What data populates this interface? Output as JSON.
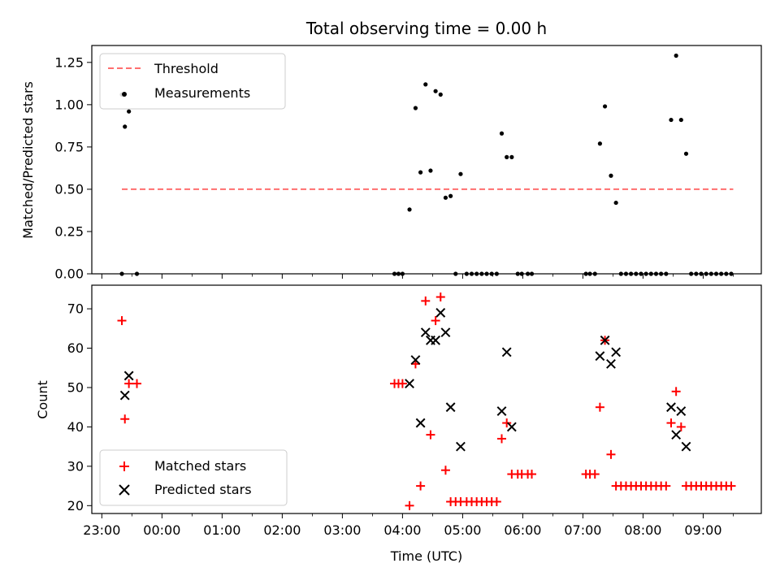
{
  "chart_data": [
    {
      "type": "scatter",
      "title": "Total observing time = 0.00 h",
      "xlabel": "",
      "ylabel": "Matched/Predicted stars",
      "ylim": [
        0,
        1.35
      ],
      "yticks": [
        "0.00",
        "0.25",
        "0.50",
        "0.75",
        "1.00",
        "1.25"
      ],
      "legend": {
        "placement": "upper-left",
        "entries": [
          "Threshold",
          "Measurements"
        ]
      },
      "threshold": {
        "name": "Threshold",
        "value": 0.5,
        "x_range": [
          "23:20",
          "09:30"
        ],
        "color": "#ff6f6f",
        "style": "dashed"
      },
      "series": [
        {
          "name": "Measurements",
          "color": "#000000",
          "points": [
            [
              "23:20",
              1.06
            ],
            [
              "23:20",
              0.0
            ],
            [
              "23:23",
              0.87
            ],
            [
              "23:27",
              0.96
            ],
            [
              "23:35",
              0.0
            ],
            [
              "03:52",
              0.0
            ],
            [
              "03:56",
              0.0
            ],
            [
              "04:00",
              0.0
            ],
            [
              "04:07",
              0.38
            ],
            [
              "04:13",
              0.98
            ],
            [
              "04:18",
              0.6
            ],
            [
              "04:23",
              1.12
            ],
            [
              "04:28",
              0.61
            ],
            [
              "04:33",
              1.08
            ],
            [
              "04:38",
              1.06
            ],
            [
              "04:43",
              0.45
            ],
            [
              "04:48",
              0.46
            ],
            [
              "04:53",
              0.0
            ],
            [
              "04:58",
              0.59
            ],
            [
              "05:04",
              0.0
            ],
            [
              "05:09",
              0.0
            ],
            [
              "05:14",
              0.0
            ],
            [
              "05:19",
              0.0
            ],
            [
              "05:24",
              0.0
            ],
            [
              "05:29",
              0.0
            ],
            [
              "05:34",
              0.0
            ],
            [
              "05:39",
              0.83
            ],
            [
              "05:44",
              0.69
            ],
            [
              "05:49",
              0.69
            ],
            [
              "05:55",
              0.0
            ],
            [
              "05:59",
              0.0
            ],
            [
              "06:05",
              0.0
            ],
            [
              "06:09",
              0.0
            ],
            [
              "07:03",
              0.0
            ],
            [
              "07:07",
              0.0
            ],
            [
              "07:12",
              0.0
            ],
            [
              "07:17",
              0.77
            ],
            [
              "07:22",
              0.99
            ],
            [
              "07:28",
              0.58
            ],
            [
              "07:33",
              0.42
            ],
            [
              "07:38",
              0.0
            ],
            [
              "07:43",
              0.0
            ],
            [
              "07:48",
              0.0
            ],
            [
              "07:53",
              0.0
            ],
            [
              "07:58",
              0.0
            ],
            [
              "08:03",
              0.0
            ],
            [
              "08:08",
              0.0
            ],
            [
              "08:13",
              0.0
            ],
            [
              "08:18",
              0.0
            ],
            [
              "08:23",
              0.0
            ],
            [
              "08:28",
              0.91
            ],
            [
              "08:33",
              1.29
            ],
            [
              "08:38",
              0.91
            ],
            [
              "08:43",
              0.71
            ],
            [
              "08:48",
              0.0
            ],
            [
              "08:53",
              0.0
            ],
            [
              "08:58",
              0.0
            ],
            [
              "09:03",
              0.0
            ],
            [
              "09:08",
              0.0
            ],
            [
              "09:13",
              0.0
            ],
            [
              "09:18",
              0.0
            ],
            [
              "09:23",
              0.0
            ],
            [
              "09:28",
              0.0
            ]
          ]
        }
      ]
    },
    {
      "type": "scatter",
      "title": "",
      "xlabel": "Time (UTC)",
      "ylabel": "Count",
      "ylim": [
        18,
        76
      ],
      "xlim": [
        "22:50",
        "09:58"
      ],
      "yticks": [
        "20",
        "30",
        "40",
        "50",
        "60",
        "70"
      ],
      "xticks": [
        "23:00",
        "00:00",
        "01:00",
        "02:00",
        "03:00",
        "04:00",
        "05:00",
        "06:00",
        "07:00",
        "08:00",
        "09:00"
      ],
      "legend": {
        "placement": "lower-left",
        "entries": [
          "Matched stars",
          "Predicted stars"
        ]
      },
      "series": [
        {
          "name": "Matched stars",
          "marker": "+",
          "color": "#ff0000",
          "points": [
            [
              "23:20",
              67
            ],
            [
              "23:23",
              42
            ],
            [
              "23:27",
              51
            ],
            [
              "23:35",
              51
            ],
            [
              "03:52",
              51
            ],
            [
              "03:56",
              51
            ],
            [
              "04:00",
              51
            ],
            [
              "04:07",
              20
            ],
            [
              "04:13",
              56
            ],
            [
              "04:18",
              25
            ],
            [
              "04:23",
              72
            ],
            [
              "04:28",
              38
            ],
            [
              "04:33",
              67
            ],
            [
              "04:38",
              73
            ],
            [
              "04:43",
              29
            ],
            [
              "04:48",
              21
            ],
            [
              "04:53",
              21
            ],
            [
              "04:58",
              21
            ],
            [
              "05:04",
              21
            ],
            [
              "05:09",
              21
            ],
            [
              "05:14",
              21
            ],
            [
              "05:19",
              21
            ],
            [
              "05:24",
              21
            ],
            [
              "05:29",
              21
            ],
            [
              "05:34",
              21
            ],
            [
              "05:39",
              37
            ],
            [
              "05:44",
              41
            ],
            [
              "05:49",
              28
            ],
            [
              "05:55",
              28
            ],
            [
              "05:59",
              28
            ],
            [
              "06:05",
              28
            ],
            [
              "06:09",
              28
            ],
            [
              "07:03",
              28
            ],
            [
              "07:07",
              28
            ],
            [
              "07:12",
              28
            ],
            [
              "07:17",
              45
            ],
            [
              "07:22",
              62
            ],
            [
              "07:28",
              33
            ],
            [
              "07:33",
              25
            ],
            [
              "07:38",
              25
            ],
            [
              "07:43",
              25
            ],
            [
              "07:48",
              25
            ],
            [
              "07:53",
              25
            ],
            [
              "07:58",
              25
            ],
            [
              "08:03",
              25
            ],
            [
              "08:08",
              25
            ],
            [
              "08:13",
              25
            ],
            [
              "08:18",
              25
            ],
            [
              "08:23",
              25
            ],
            [
              "08:28",
              41
            ],
            [
              "08:33",
              49
            ],
            [
              "08:38",
              40
            ],
            [
              "08:43",
              25
            ],
            [
              "08:48",
              25
            ],
            [
              "08:53",
              25
            ],
            [
              "08:58",
              25
            ],
            [
              "09:03",
              25
            ],
            [
              "09:08",
              25
            ],
            [
              "09:13",
              25
            ],
            [
              "09:18",
              25
            ],
            [
              "09:23",
              25
            ],
            [
              "09:28",
              25
            ]
          ]
        },
        {
          "name": "Predicted stars",
          "marker": "x",
          "color": "#000000",
          "points": [
            [
              "23:23",
              48
            ],
            [
              "23:27",
              53
            ],
            [
              "04:07",
              51
            ],
            [
              "04:13",
              57
            ],
            [
              "04:18",
              41
            ],
            [
              "04:23",
              64
            ],
            [
              "04:28",
              62
            ],
            [
              "04:33",
              62
            ],
            [
              "04:38",
              69
            ],
            [
              "04:43",
              64
            ],
            [
              "04:48",
              45
            ],
            [
              "04:58",
              35
            ],
            [
              "05:39",
              44
            ],
            [
              "05:44",
              59
            ],
            [
              "05:49",
              40
            ],
            [
              "07:17",
              58
            ],
            [
              "07:22",
              62
            ],
            [
              "07:28",
              56
            ],
            [
              "07:33",
              59
            ],
            [
              "08:28",
              45
            ],
            [
              "08:33",
              38
            ],
            [
              "08:38",
              44
            ],
            [
              "08:43",
              35
            ]
          ]
        }
      ]
    }
  ]
}
